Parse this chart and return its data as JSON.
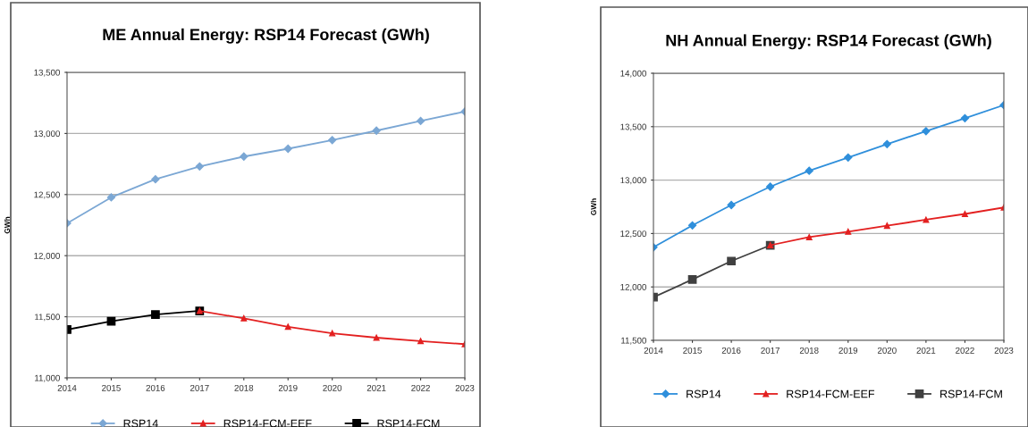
{
  "chart_data": [
    {
      "type": "line",
      "title": "ME Annual Energy: RSP14 Forecast (GWh)",
      "ylabel": "GWh",
      "x": [
        2014,
        2015,
        2016,
        2017,
        2018,
        2019,
        2020,
        2021,
        2022,
        2023
      ],
      "series": [
        {
          "name": "RSP14",
          "color": "#7ba7d4",
          "marker": "diamond",
          "values": [
            12265,
            12477,
            12625,
            12730,
            12811,
            12875,
            12946,
            13023,
            13102,
            13179
          ]
        },
        {
          "name": "RSP14-FCM-EEF",
          "color": "#e32020",
          "marker": "triangle",
          "values": [
            null,
            null,
            null,
            11548,
            11487,
            11418,
            11365,
            11329,
            11301,
            11276
          ]
        },
        {
          "name": "RSP14-FCM",
          "color": "#000000",
          "marker": "square",
          "values": [
            11395,
            11464,
            11518,
            11548,
            null,
            null,
            null,
            null,
            null,
            null
          ]
        }
      ],
      "xlim": [
        2014,
        2023
      ],
      "xticks": [
        2014,
        2015,
        2016,
        2017,
        2018,
        2019,
        2020,
        2021,
        2022,
        2023
      ],
      "ylim": [
        11000,
        13500
      ],
      "yticks": [
        {
          "value": 11000,
          "label": "11,000"
        },
        {
          "value": 11500,
          "label": "11,500"
        },
        {
          "value": 12000,
          "label": "12,000"
        },
        {
          "value": 12500,
          "label": "12,500"
        },
        {
          "value": 13000,
          "label": "13,000"
        },
        {
          "value": 13500,
          "label": "13,500"
        }
      ],
      "grid": "y",
      "legend": "bottom",
      "line_style": "solid"
    },
    {
      "type": "line",
      "title": "NH Annual Energy: RSP14 Forecast (GWh)",
      "ylabel": "GWh",
      "x": [
        2014,
        2015,
        2016,
        2017,
        2018,
        2019,
        2020,
        2021,
        2022,
        2023
      ],
      "series": [
        {
          "name": "RSP14",
          "color": "#2f8fdb",
          "marker": "diamond",
          "values": [
            12371,
            12576,
            12767,
            12938,
            13087,
            13211,
            13337,
            13458,
            13579,
            13702
          ]
        },
        {
          "name": "RSP14-FCM-EEF",
          "color": "#e32020",
          "marker": "triangle",
          "values": [
            null,
            null,
            null,
            12390,
            12466,
            12517,
            12573,
            12629,
            12683,
            12744
          ]
        },
        {
          "name": "RSP14-FCM",
          "color": "#404040",
          "marker": "square",
          "values": [
            11904,
            12070,
            12242,
            12390,
            null,
            null,
            null,
            null,
            null,
            null
          ]
        }
      ],
      "xlim": [
        2014,
        2023
      ],
      "xticks": [
        2014,
        2015,
        2016,
        2017,
        2018,
        2019,
        2020,
        2021,
        2022,
        2023
      ],
      "ylim": [
        11500,
        14000
      ],
      "yticks": [
        {
          "value": 11500,
          "label": "11,500"
        },
        {
          "value": 12000,
          "label": "12,000"
        },
        {
          "value": 12500,
          "label": "12,500"
        },
        {
          "value": 13000,
          "label": "13,000"
        },
        {
          "value": 13500,
          "label": "13,500"
        },
        {
          "value": 14000,
          "label": "14,000"
        }
      ],
      "grid": "y",
      "legend": "bottom",
      "line_style": "solid"
    }
  ]
}
